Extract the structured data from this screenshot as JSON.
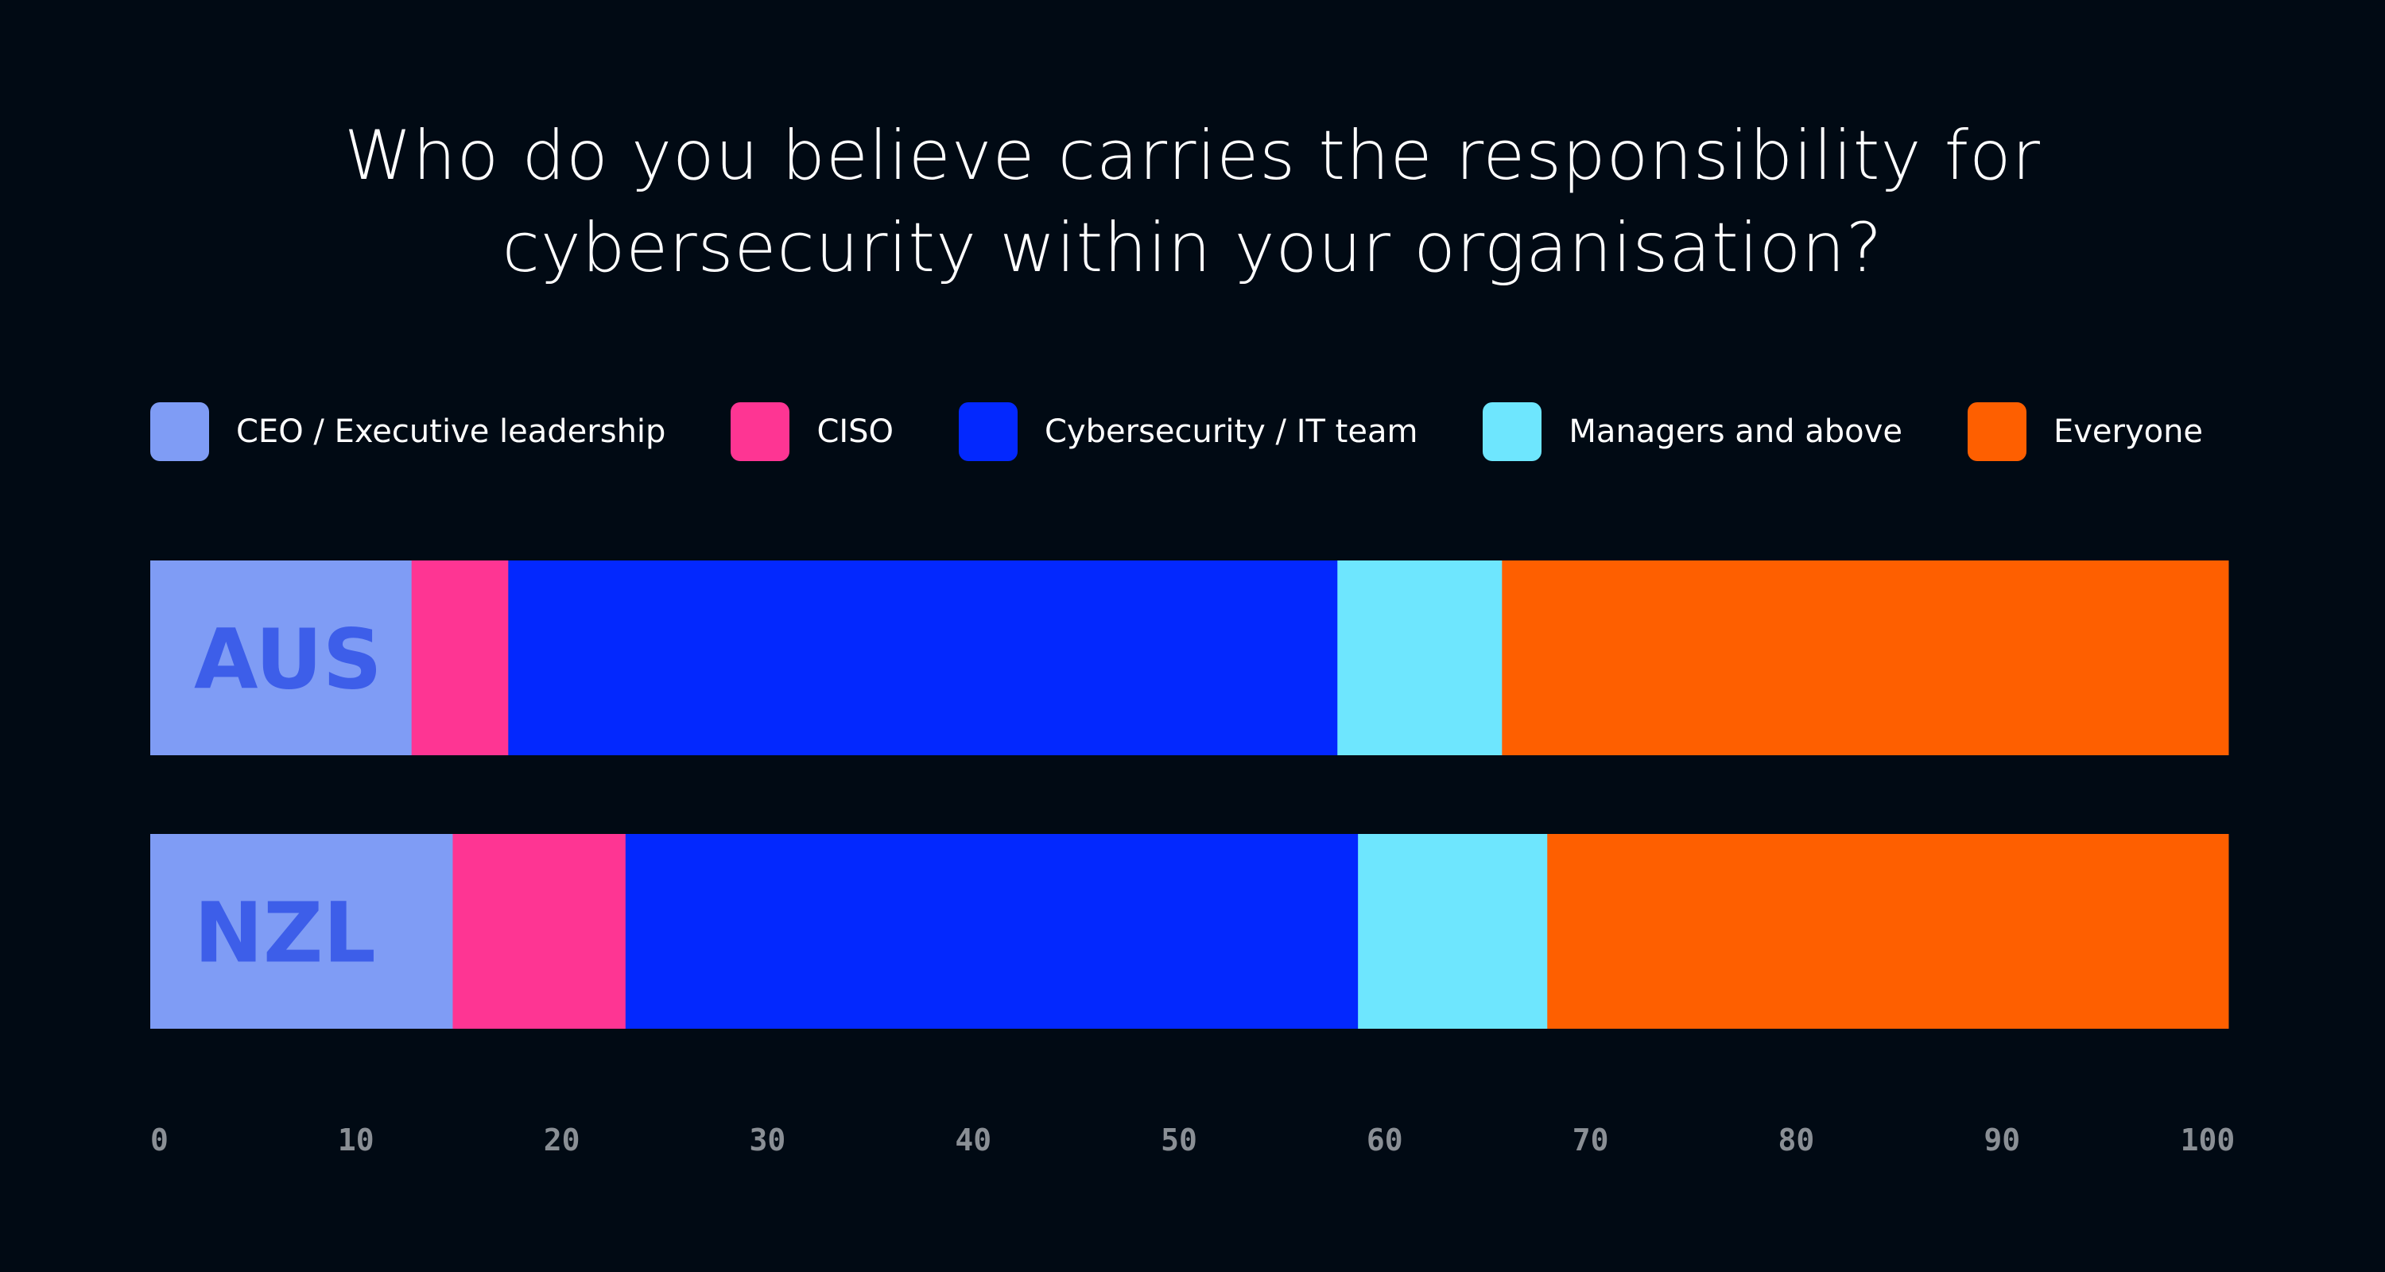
{
  "chart_data": {
    "type": "bar",
    "orientation": "horizontal",
    "stacked": true,
    "title_lines": [
      "Who do you believe carries the responsibility for",
      "cybersecurity within your organisation?"
    ],
    "categories": [
      "AUS",
      "NZL"
    ],
    "series": [
      {
        "name": "CEO / Executive leadership",
        "color": "#7f9cf5",
        "values": [
          12.7,
          14.7
        ]
      },
      {
        "name": "CISO",
        "color": "#fe3593",
        "values": [
          4.7,
          8.4
        ]
      },
      {
        "name": "Cybersecurity / IT team",
        "color": "#0328fe",
        "values": [
          40.3,
          35.6
        ]
      },
      {
        "name": "Managers and above",
        "color": "#6ee6fe",
        "values": [
          8.0,
          9.2
        ]
      },
      {
        "name": "Everyone",
        "color": "#fe5f00",
        "values": [
          35.3,
          33.1
        ]
      }
    ],
    "xlim": [
      0,
      100
    ],
    "xticks": [
      "0",
      "10",
      "20",
      "30",
      "40",
      "50",
      "60",
      "70",
      "80",
      "90",
      "100"
    ],
    "grid": false,
    "legend_position": "top",
    "category_label_color": "#3d5ee9",
    "tick_label_color": "#8a8f95",
    "background": "#010a14"
  }
}
